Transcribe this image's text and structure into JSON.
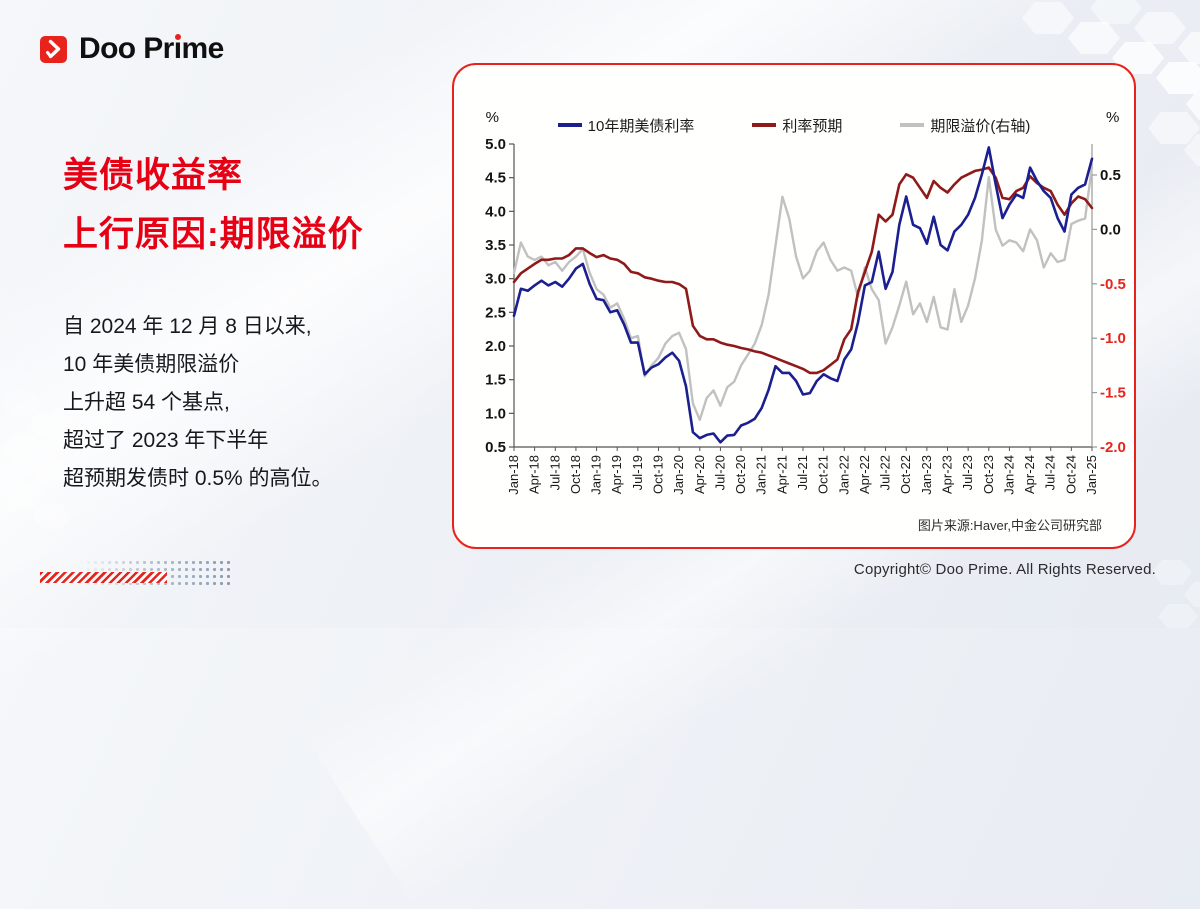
{
  "brand": {
    "logo_part1": "Doo Pr",
    "logo_part2": "i",
    "logo_part3": "me",
    "copyright": "Copyright© Doo Prime. All Rights Reserved."
  },
  "headline": {
    "line1": "美债收益率",
    "line2": "上行原因:期限溢价"
  },
  "body_lines": [
    "自 2024 年 12 月 8 日以来,",
    "10 年美债期限溢价",
    "上升超 54 个基点,",
    "超过了 2023 年下半年",
    "超预期发债时 0.5% 的高位。"
  ],
  "colors": {
    "accent_red": "#e8231c",
    "headline_red": "#e60014",
    "series_blue": "#1b1f8f",
    "series_dark_red": "#8e1a1a",
    "series_gray": "#c1c1c1",
    "axis_black": "#141414",
    "axis_negative_red": "#e8231c"
  },
  "chart_data": {
    "type": "line",
    "title": "",
    "source_note": "图片来源:Haver,中金公司研究部",
    "legend_position": "top",
    "grid": false,
    "left_axis": {
      "label": "%",
      "min": 0.5,
      "max": 5.0,
      "ticks": [
        "5.0",
        "4.5",
        "4.0",
        "3.5",
        "3.0",
        "2.5",
        "2.0",
        "1.5",
        "1.0",
        "0.5"
      ]
    },
    "right_axis": {
      "label": "%",
      "min": -2.0,
      "max": 0.64,
      "ticks": [
        "0.5",
        "0.0",
        "-0.5",
        "-1.0",
        "-1.5",
        "-2.0"
      ]
    },
    "x_start": "Jan-18",
    "x_end": "Jan-25",
    "x_interval": "monthly",
    "x_tick_labels": [
      "Jan-18",
      "Apr-18",
      "Jul-18",
      "Oct-18",
      "Jan-19",
      "Apr-19",
      "Jul-19",
      "Oct-19",
      "Jan-20",
      "Apr-20",
      "Jul-20",
      "Oct-20",
      "Jan-21",
      "Apr-21",
      "Jul-21",
      "Oct-21",
      "Jan-22",
      "Apr-22",
      "Jul-22",
      "Oct-22",
      "Jan-23",
      "Apr-23",
      "Jul-23",
      "Oct-23",
      "Jan-24",
      "Apr-24",
      "Jul-24",
      "Oct-24",
      "Jan-25"
    ],
    "series": [
      {
        "name": "期限溢价(右轴)",
        "axis": "right",
        "color": "#c1c1c1",
        "values": [
          -0.4,
          -0.12,
          -0.25,
          -0.28,
          -0.25,
          -0.33,
          -0.3,
          -0.38,
          -0.3,
          -0.25,
          -0.18,
          -0.4,
          -0.55,
          -0.6,
          -0.72,
          -0.68,
          -0.82,
          -1.0,
          -0.98,
          -1.35,
          -1.25,
          -1.18,
          -1.05,
          -0.98,
          -0.95,
          -1.1,
          -1.6,
          -1.75,
          -1.55,
          -1.48,
          -1.62,
          -1.45,
          -1.4,
          -1.25,
          -1.15,
          -1.05,
          -0.88,
          -0.6,
          -0.15,
          0.3,
          0.1,
          -0.25,
          -0.45,
          -0.38,
          -0.2,
          -0.12,
          -0.28,
          -0.38,
          -0.35,
          -0.38,
          -0.62,
          -0.35,
          -0.55,
          -0.65,
          -1.05,
          -0.9,
          -0.7,
          -0.48,
          -0.78,
          -0.68,
          -0.85,
          -0.62,
          -0.9,
          -0.92,
          -0.55,
          -0.85,
          -0.7,
          -0.45,
          -0.1,
          0.48,
          0.0,
          -0.15,
          -0.1,
          -0.12,
          -0.2,
          0.0,
          -0.1,
          -0.35,
          -0.22,
          -0.3,
          -0.28,
          0.05,
          0.08,
          0.1,
          0.58
        ]
      },
      {
        "name": "利率预期",
        "axis": "left",
        "color": "#8e1a1a",
        "values": [
          2.95,
          3.08,
          3.15,
          3.22,
          3.28,
          3.28,
          3.3,
          3.3,
          3.35,
          3.45,
          3.45,
          3.38,
          3.32,
          3.35,
          3.3,
          3.28,
          3.22,
          3.1,
          3.08,
          3.02,
          3.0,
          2.97,
          2.95,
          2.95,
          2.92,
          2.85,
          2.3,
          2.15,
          2.1,
          2.1,
          2.05,
          2.02,
          2.0,
          1.97,
          1.95,
          1.92,
          1.9,
          1.86,
          1.82,
          1.78,
          1.74,
          1.7,
          1.66,
          1.6,
          1.6,
          1.64,
          1.72,
          1.8,
          2.1,
          2.25,
          2.8,
          3.1,
          3.4,
          3.95,
          3.85,
          3.95,
          4.4,
          4.55,
          4.5,
          4.35,
          4.2,
          4.45,
          4.35,
          4.28,
          4.4,
          4.5,
          4.55,
          4.6,
          4.62,
          4.65,
          4.5,
          4.2,
          4.18,
          4.3,
          4.35,
          4.52,
          4.42,
          4.35,
          4.3,
          4.1,
          3.95,
          4.12,
          4.22,
          4.18,
          4.05
        ]
      },
      {
        "name": "10年期美债利率",
        "axis": "left",
        "color": "#1b1f8f",
        "values": [
          2.45,
          2.85,
          2.82,
          2.9,
          2.97,
          2.9,
          2.95,
          2.88,
          3.0,
          3.15,
          3.22,
          2.92,
          2.7,
          2.68,
          2.5,
          2.53,
          2.32,
          2.05,
          2.05,
          1.58,
          1.68,
          1.73,
          1.83,
          1.9,
          1.78,
          1.4,
          0.72,
          0.63,
          0.68,
          0.7,
          0.57,
          0.67,
          0.68,
          0.82,
          0.86,
          0.92,
          1.08,
          1.35,
          1.7,
          1.6,
          1.6,
          1.48,
          1.28,
          1.3,
          1.48,
          1.58,
          1.52,
          1.48,
          1.8,
          1.95,
          2.35,
          2.9,
          2.95,
          3.4,
          2.85,
          3.1,
          3.8,
          4.22,
          3.8,
          3.75,
          3.52,
          3.92,
          3.5,
          3.42,
          3.7,
          3.8,
          3.95,
          4.2,
          4.55,
          4.95,
          4.4,
          3.9,
          4.1,
          4.25,
          4.2,
          4.65,
          4.45,
          4.3,
          4.2,
          3.9,
          3.7,
          4.25,
          4.35,
          4.4,
          4.78
        ]
      }
    ],
    "legend_order": [
      "10年期美债利率",
      "利率预期",
      "期限溢价(右轴)"
    ]
  }
}
